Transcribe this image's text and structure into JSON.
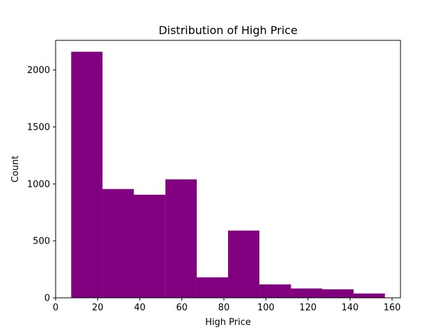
{
  "chart_data": {
    "type": "bar",
    "title": "Distribution of High Price",
    "xlabel": "High Price",
    "ylabel": "Count",
    "bar_color": "#800080",
    "xlim": [
      0,
      164
    ],
    "ylim": [
      0,
      2260
    ],
    "x_ticks": [
      0,
      20,
      40,
      60,
      80,
      100,
      120,
      140,
      160
    ],
    "y_ticks": [
      0,
      500,
      1000,
      1500,
      2000
    ],
    "bins": [
      {
        "start": 7.4,
        "end": 22.3,
        "count": 2160
      },
      {
        "start": 22.3,
        "end": 37.2,
        "count": 955
      },
      {
        "start": 37.2,
        "end": 52.2,
        "count": 905
      },
      {
        "start": 52.2,
        "end": 67.1,
        "count": 1040
      },
      {
        "start": 67.1,
        "end": 82.0,
        "count": 180
      },
      {
        "start": 82.0,
        "end": 96.9,
        "count": 590
      },
      {
        "start": 96.9,
        "end": 111.9,
        "count": 118
      },
      {
        "start": 111.9,
        "end": 126.8,
        "count": 82
      },
      {
        "start": 126.8,
        "end": 141.7,
        "count": 75
      },
      {
        "start": 141.7,
        "end": 156.6,
        "count": 38
      }
    ],
    "grid": false,
    "legend": "none"
  }
}
